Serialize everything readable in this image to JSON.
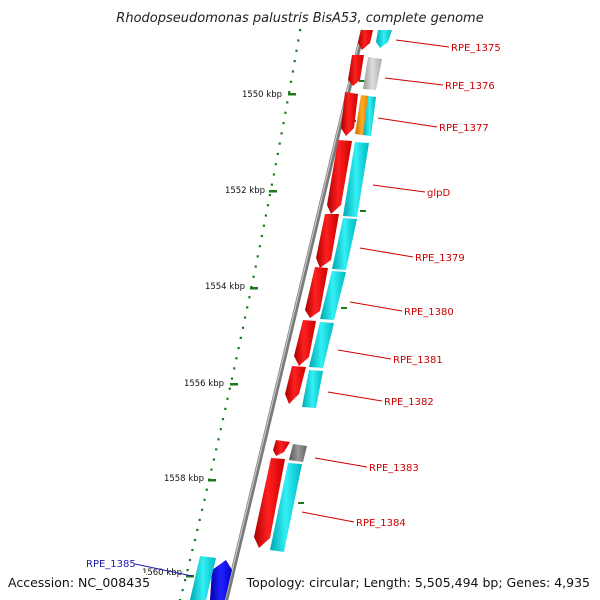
{
  "header": {
    "title": "Rhodopseudomonas palustris BisA53, complete genome"
  },
  "footer": {
    "accession": "Accession: NC_008435",
    "topology": "Topology: circular; Length: 5,505,494 bp; Genes: 4,935"
  },
  "scale_labels": [
    "1550 kbp",
    "1552 kbp",
    "1554 kbp",
    "1556 kbp",
    "1558 kbp",
    "1560 kbp"
  ],
  "gene_labels": [
    "RPE_1375",
    "RPE_1376",
    "RPE_1377",
    "glpD",
    "RPE_1379",
    "RPE_1380",
    "RPE_1381",
    "RPE_1382",
    "RPE_1383",
    "RPE_1384",
    "RPE_1385"
  ],
  "colors": {
    "forward_cds": "#ff1a1a",
    "reverse_cds": "#00e5ee",
    "label_red": "#cc0000",
    "label_blue": "#1a1aaa",
    "backbone": "#8a8a8a",
    "tick": "#1a7a1a",
    "orange_feature": "#ff9900",
    "gray_feature": "#bbbbbb",
    "dark_gray_feature": "#777777",
    "blue_feature": "#0000ee"
  }
}
